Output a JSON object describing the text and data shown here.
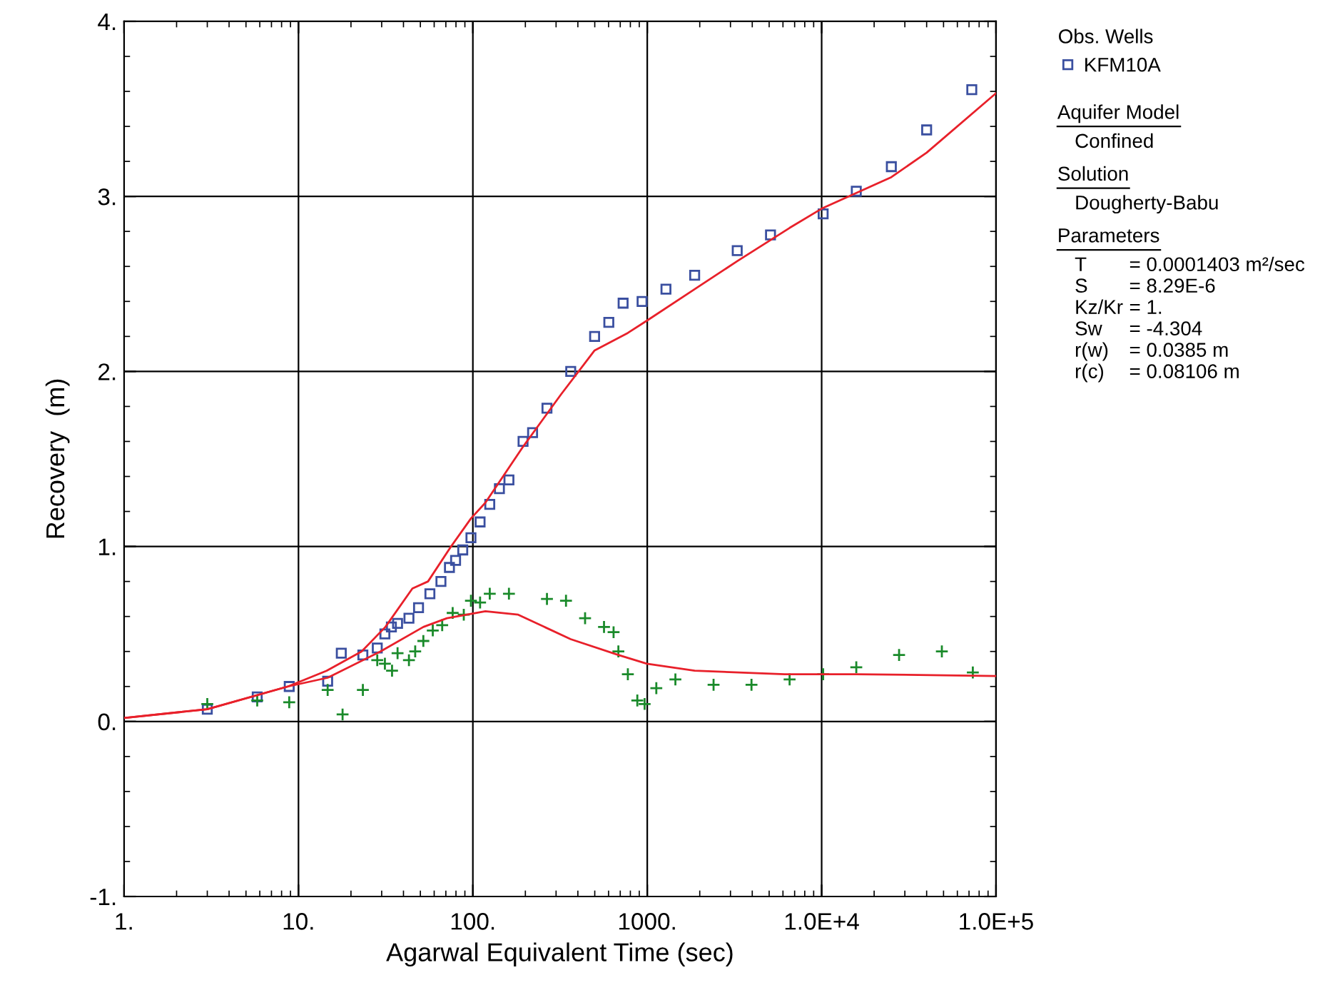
{
  "chart_data": {
    "type": "scatter",
    "xlabel": "Agarwal Equivalent Time (sec)",
    "ylabel": "Recovery  (m)",
    "log": "x",
    "grid": true,
    "legend": "top right",
    "legend_title": "Obs. Wells",
    "xlim": [
      1,
      100000
    ],
    "ylim": [
      -1,
      4
    ],
    "xticks": [
      {
        "value": 1,
        "label": "1."
      },
      {
        "value": 10,
        "label": "10."
      },
      {
        "value": 100,
        "label": "100."
      },
      {
        "value": 1000,
        "label": "1000."
      },
      {
        "value": 10000,
        "label": "1.0E+4"
      },
      {
        "value": 100000,
        "label": "1.0E+5"
      }
    ],
    "yticks": [
      {
        "value": -1,
        "label": "-1."
      },
      {
        "value": 0,
        "label": "0."
      },
      {
        "value": 1,
        "label": "1."
      },
      {
        "value": 2,
        "label": "2."
      },
      {
        "value": 3,
        "label": "3."
      },
      {
        "value": 4,
        "label": "4."
      }
    ],
    "series": [
      {
        "name": "KFM10A",
        "marker": "square",
        "color": "#3a4fa0",
        "x": [
          3,
          5.8,
          8.85,
          14.7,
          17.6,
          23.4,
          28.3,
          31.3,
          34.1,
          37,
          43,
          48.8,
          56.7,
          65.6,
          73.4,
          79.6,
          87.5,
          97.5,
          110,
          125,
          142,
          161,
          194,
          220,
          266,
          364,
          499,
          602,
          727,
          934,
          1280,
          1870,
          3280,
          5090,
          10200,
          15800,
          25100,
          40000,
          72600
        ],
        "values": [
          0.07,
          0.14,
          0.2,
          0.23,
          0.39,
          0.38,
          0.42,
          0.5,
          0.54,
          0.56,
          0.59,
          0.65,
          0.73,
          0.8,
          0.88,
          0.92,
          0.98,
          1.05,
          1.14,
          1.24,
          1.33,
          1.38,
          1.6,
          1.65,
          1.79,
          2.0,
          2.2,
          2.28,
          2.39,
          2.4,
          2.47,
          2.55,
          2.69,
          2.78,
          2.9,
          3.03,
          3.17,
          3.38,
          3.61
        ]
      },
      {
        "marker": "cross",
        "color": "#1a8a2a",
        "x": [
          3,
          5.8,
          8.85,
          14.7,
          17.9,
          23.4,
          28.3,
          31.3,
          34.4,
          37,
          43,
          46.7,
          52,
          58.9,
          66.7,
          76.6,
          88.7,
          97.5,
          110,
          125,
          161,
          266,
          342,
          440,
          565,
          641,
          683,
          774,
          877,
          966,
          1127,
          1450,
          2400,
          3960,
          6550,
          10200,
          15800,
          27800,
          48900,
          73600
        ],
        "values": [
          0.1,
          0.12,
          0.11,
          0.18,
          0.04,
          0.18,
          0.35,
          0.33,
          0.29,
          0.39,
          0.35,
          0.4,
          0.46,
          0.52,
          0.55,
          0.62,
          0.61,
          0.69,
          0.68,
          0.73,
          0.73,
          0.7,
          0.69,
          0.59,
          0.54,
          0.51,
          0.4,
          0.27,
          0.12,
          0.1,
          0.19,
          0.24,
          0.21,
          0.21,
          0.24,
          0.27,
          0.31,
          0.38,
          0.4,
          0.28
        ]
      },
      {
        "type": "line",
        "marker": "none",
        "color": "#e8202a",
        "x": [
          1,
          3,
          8.7,
          14.5,
          23,
          31.5,
          45,
          55.3,
          75,
          97.5,
          118,
          194,
          321,
          499,
          774,
          995,
          1870,
          3280,
          6550,
          10000,
          25100,
          40000,
          100000
        ],
        "values": [
          0.02,
          0.07,
          0.2,
          0.29,
          0.4,
          0.54,
          0.76,
          0.8,
          1.0,
          1.16,
          1.25,
          1.57,
          1.87,
          2.12,
          2.22,
          2.29,
          2.47,
          2.63,
          2.82,
          2.93,
          3.11,
          3.25,
          3.59
        ]
      },
      {
        "type": "line",
        "marker": "none",
        "color": "#e8202a",
        "x": [
          1,
          3,
          8.7,
          14.7,
          29.5,
          52,
          71,
          118,
          182,
          364,
          683,
          995,
          1870,
          6150,
          15800,
          100000
        ],
        "values": [
          0.02,
          0.07,
          0.2,
          0.25,
          0.4,
          0.54,
          0.59,
          0.63,
          0.61,
          0.47,
          0.38,
          0.33,
          0.29,
          0.27,
          0.27,
          0.26
        ]
      }
    ],
    "annotations": [
      "Aquifer Model",
      "Confined",
      "Solution",
      "Dougherty-Babu",
      "Parameters",
      "T      = 0.0001403 m²/sec",
      "S      = 8.29E-6",
      "Kz/Kr = 1.",
      "Sw    = -4.304",
      "r(w)  = 0.0385 m",
      "r(c)  = 0.08106 m"
    ]
  }
}
